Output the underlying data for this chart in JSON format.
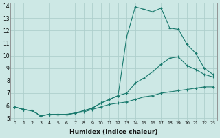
{
  "xlabel": "Humidex (Indice chaleur)",
  "background_color": "#cde8e5",
  "grid_color": "#aecfcc",
  "line_color": "#1a7a6e",
  "xlim": [
    -0.5,
    23.5
  ],
  "ylim": [
    4.8,
    14.2
  ],
  "x_ticks": [
    0,
    1,
    2,
    3,
    4,
    5,
    6,
    7,
    8,
    9,
    10,
    11,
    12,
    13,
    14,
    15,
    16,
    17,
    18,
    19,
    20,
    21,
    22,
    23
  ],
  "y_ticks": [
    5,
    6,
    7,
    8,
    9,
    10,
    11,
    12,
    13,
    14
  ],
  "series": [
    {
      "x": [
        0,
        1,
        2,
        3,
        4,
        5,
        6,
        7,
        8,
        9,
        10,
        11,
        12,
        13,
        14,
        15,
        16,
        17,
        18,
        19,
        20,
        21,
        22,
        23
      ],
      "y": [
        5.9,
        5.7,
        5.6,
        5.2,
        5.3,
        5.3,
        5.3,
        5.4,
        5.5,
        5.7,
        5.9,
        6.1,
        6.2,
        6.3,
        6.5,
        6.7,
        6.8,
        7.0,
        7.1,
        7.2,
        7.3,
        7.4,
        7.5,
        7.5
      ]
    },
    {
      "x": [
        0,
        1,
        2,
        3,
        4,
        5,
        6,
        7,
        8,
        9,
        10,
        11,
        12,
        13,
        14,
        15,
        16,
        17,
        18,
        19,
        20,
        21,
        22,
        23
      ],
      "y": [
        5.9,
        5.7,
        5.6,
        5.2,
        5.3,
        5.3,
        5.3,
        5.4,
        5.6,
        5.8,
        6.2,
        6.5,
        6.8,
        7.0,
        7.8,
        8.2,
        8.7,
        9.3,
        9.8,
        9.9,
        9.2,
        8.9,
        8.5,
        8.3
      ]
    },
    {
      "x": [
        0,
        1,
        2,
        3,
        4,
        5,
        6,
        7,
        8,
        9,
        10,
        11,
        12,
        13,
        14,
        15,
        16,
        17,
        18,
        19,
        20,
        21,
        22,
        23
      ],
      "y": [
        5.9,
        5.7,
        5.6,
        5.2,
        5.3,
        5.3,
        5.3,
        5.4,
        5.6,
        5.8,
        6.2,
        6.5,
        6.8,
        11.5,
        13.9,
        13.7,
        13.5,
        13.8,
        12.2,
        12.1,
        10.9,
        10.2,
        9.0,
        8.5
      ]
    }
  ]
}
